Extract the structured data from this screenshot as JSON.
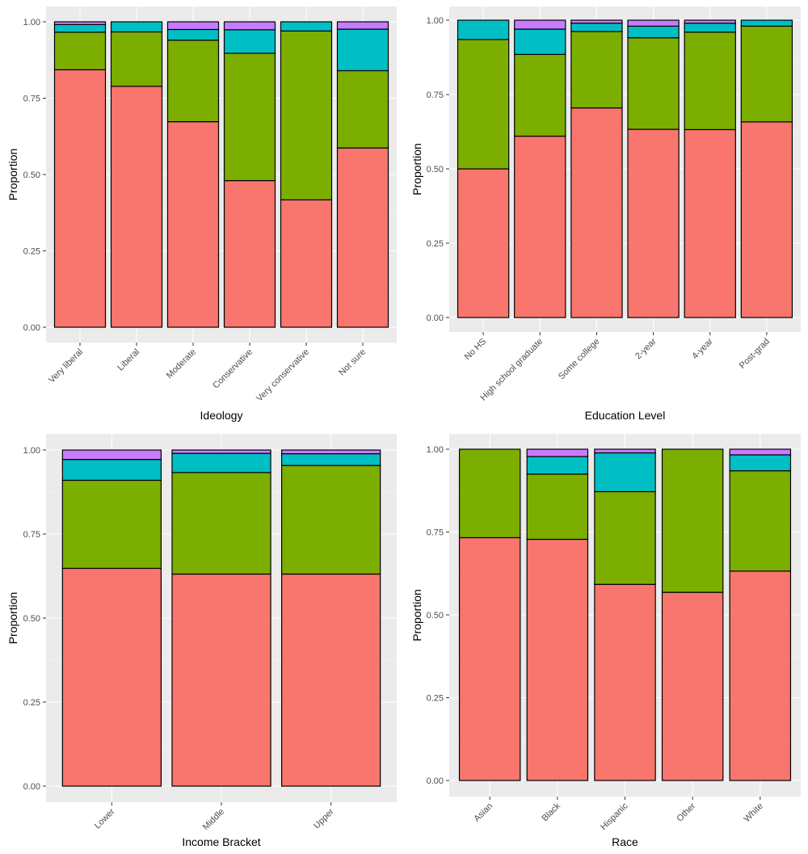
{
  "colors": {
    "panel_bg": "#ebebeb",
    "grid_major": "#ffffff",
    "grid_minor": "#f5f5f5",
    "bar_outline": "#000000",
    "tick_text": "#4d4d4d",
    "segments": [
      "#f8766d",
      "#7cae00",
      "#00bfc4",
      "#c77cff"
    ]
  },
  "chart_data": [
    {
      "type": "bar",
      "stacked": true,
      "xlabel": "Ideology",
      "ylabel": "Proportion",
      "ylim": [
        0,
        1
      ],
      "yticks": [
        "0.00",
        "0.25",
        "0.50",
        "0.75",
        "1.00"
      ],
      "xtick_rotation": 45,
      "categories": [
        "Very liberal",
        "Liberal",
        "Moderate",
        "Conservative",
        "Very conservative",
        "Not sure"
      ],
      "segment_colors": [
        "#f8766d",
        "#7cae00",
        "#00bfc4",
        "#c77cff"
      ],
      "values": [
        [
          0.843,
          0.123,
          0.025,
          0.009
        ],
        [
          0.789,
          0.178,
          0.033,
          0.0
        ],
        [
          0.673,
          0.267,
          0.035,
          0.025
        ],
        [
          0.48,
          0.417,
          0.077,
          0.026
        ],
        [
          0.417,
          0.553,
          0.03,
          0.0
        ],
        [
          0.587,
          0.253,
          0.136,
          0.024
        ]
      ]
    },
    {
      "type": "bar",
      "stacked": true,
      "xlabel": "Education Level",
      "ylabel": "Proportion",
      "ylim": [
        0,
        1
      ],
      "yticks": [
        "0.00",
        "0.25",
        "0.50",
        "0.75",
        "1.00"
      ],
      "xtick_rotation": 45,
      "categories": [
        "No HS",
        "High school graduate",
        "Some college",
        "2-year",
        "4-year",
        "Post-grad"
      ],
      "segment_colors": [
        "#f8766d",
        "#7cae00",
        "#00bfc4",
        "#c77cff"
      ],
      "values": [
        [
          0.5,
          0.435,
          0.065,
          0.0
        ],
        [
          0.61,
          0.275,
          0.085,
          0.03
        ],
        [
          0.705,
          0.257,
          0.028,
          0.01
        ],
        [
          0.633,
          0.308,
          0.039,
          0.02
        ],
        [
          0.632,
          0.328,
          0.03,
          0.01
        ],
        [
          0.658,
          0.322,
          0.02,
          0.0
        ]
      ]
    },
    {
      "type": "bar",
      "stacked": true,
      "xlabel": "Income Bracket",
      "ylabel": "Proportion",
      "ylim": [
        0,
        1
      ],
      "yticks": [
        "0.00",
        "0.25",
        "0.50",
        "0.75",
        "1.00"
      ],
      "xtick_rotation": 45,
      "categories": [
        "Lower",
        "Middle",
        "Upper"
      ],
      "segment_colors": [
        "#f8766d",
        "#7cae00",
        "#00bfc4",
        "#c77cff"
      ],
      "values": [
        [
          0.648,
          0.262,
          0.062,
          0.028
        ],
        [
          0.631,
          0.302,
          0.057,
          0.01
        ],
        [
          0.631,
          0.323,
          0.035,
          0.011
        ]
      ]
    },
    {
      "type": "bar",
      "stacked": true,
      "xlabel": "Race",
      "ylabel": "Proportion",
      "ylim": [
        0,
        1
      ],
      "yticks": [
        "0.00",
        "0.25",
        "0.50",
        "0.75",
        "1.00"
      ],
      "xtick_rotation": 45,
      "categories": [
        "Asian",
        "Black",
        "Hispanic",
        "Other",
        "White"
      ],
      "segment_colors": [
        "#f8766d",
        "#7cae00",
        "#00bfc4",
        "#c77cff"
      ],
      "values": [
        [
          0.733,
          0.267,
          0.0,
          0.0
        ],
        [
          0.728,
          0.197,
          0.053,
          0.022
        ],
        [
          0.592,
          0.28,
          0.117,
          0.011
        ],
        [
          0.568,
          0.432,
          0.0,
          0.0
        ],
        [
          0.632,
          0.303,
          0.048,
          0.017
        ]
      ]
    }
  ]
}
